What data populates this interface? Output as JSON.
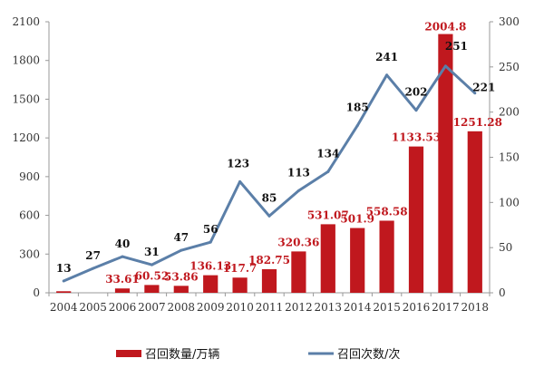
{
  "chart_data": {
    "type": "bar",
    "categories": [
      "2004",
      "2005",
      "2006",
      "2007",
      "2008",
      "2009",
      "2010",
      "2011",
      "2012",
      "2013",
      "2014",
      "2015",
      "2016",
      "2017",
      "2018"
    ],
    "series": [
      {
        "name": "召回数量/万辆",
        "type": "bar",
        "axis": "left",
        "color": "#c0181e",
        "values": [
          12,
          0,
          33.61,
          60.52,
          53.86,
          136.13,
          117.7,
          182.75,
          320.36,
          531.07,
          501.9,
          558.58,
          1133.53,
          2004.8,
          1251.28
        ],
        "labels": [
          "",
          "",
          "33.61",
          "60.52",
          "53.86",
          "136.13",
          "117.7",
          "182.75",
          "320.36",
          "531.07",
          "501.9",
          "558.58",
          "1133.53",
          "2004.8",
          "1251.28"
        ]
      },
      {
        "name": "召回次数/次",
        "type": "line",
        "axis": "right",
        "color": "#5b7fa8",
        "values": [
          13,
          27,
          40,
          31,
          47,
          56,
          123,
          85,
          113,
          134,
          185,
          241,
          202,
          251,
          221
        ],
        "labels": [
          "13",
          "27",
          "40",
          "31",
          "47",
          "56",
          "123",
          "85",
          "113",
          "134",
          "185",
          "241",
          "202",
          "251",
          "221"
        ]
      }
    ],
    "y_left": {
      "ylim": [
        0,
        2100
      ],
      "ticks": [
        "0",
        "300",
        "600",
        "900",
        "1200",
        "1500",
        "1800",
        "2100"
      ]
    },
    "y_right": {
      "ylim": [
        0,
        300
      ],
      "ticks": [
        "0",
        "50",
        "100",
        "150",
        "200",
        "250",
        "300"
      ]
    },
    "legend": {
      "placement": "bottom"
    },
    "grid": false
  }
}
